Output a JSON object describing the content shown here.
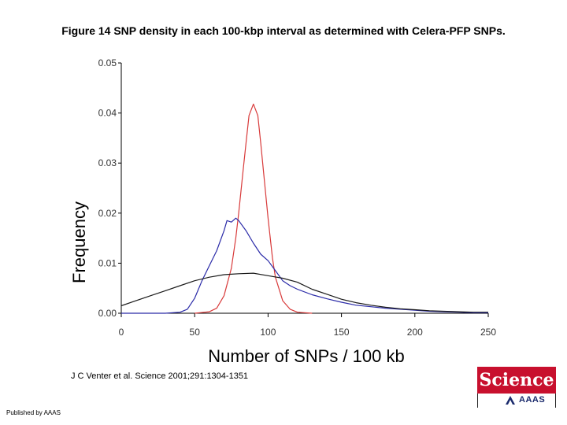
{
  "figure": {
    "title": "Figure 14 SNP density in each 100-kbp interval as determined with Celera-PFP SNPs.",
    "citation": "J C Venter et al. Science 2001;291:1304-1351",
    "publisher": "Published by AAAS",
    "logo_word": "Science",
    "logo_sub": "AAAS"
  },
  "chart_data": {
    "type": "line",
    "xlabel": "Number of SNPs / 100 kb",
    "ylabel": "Frequency",
    "xlim": [
      0,
      250
    ],
    "ylim": [
      0,
      0.05
    ],
    "xticks": [
      0,
      50,
      100,
      150,
      200,
      250
    ],
    "xtick_labels": [
      "0",
      "50",
      "100",
      "150",
      "200",
      "250"
    ],
    "yticks": [
      0,
      0.01,
      0.02,
      0.03,
      0.04,
      0.05
    ],
    "ytick_labels": [
      "0.00",
      "0.01",
      "0.02",
      "0.03",
      "0.04",
      "0.05"
    ],
    "grid": false,
    "colors": {
      "red": "#d83a3a",
      "blue": "#2b2ba8",
      "black": "#1a1a1a",
      "axes": "#000000"
    },
    "series": [
      {
        "color": "red",
        "x": [
          50,
          60,
          65,
          70,
          75,
          78,
          80,
          83,
          85,
          87,
          90,
          93,
          95,
          97,
          100,
          103,
          105,
          110,
          115,
          120,
          130
        ],
        "values": [
          0,
          0.0003,
          0.001,
          0.0035,
          0.009,
          0.015,
          0.02,
          0.0285,
          0.034,
          0.0395,
          0.0418,
          0.0395,
          0.034,
          0.028,
          0.019,
          0.011,
          0.0072,
          0.0025,
          0.0008,
          0.0002,
          0
        ]
      },
      {
        "color": "blue",
        "x": [
          0,
          30,
          40,
          45,
          50,
          55,
          60,
          65,
          70,
          72,
          75,
          78,
          80,
          85,
          90,
          95,
          100,
          105,
          110,
          115,
          120,
          130,
          140,
          150,
          160,
          170,
          180,
          190,
          200,
          210,
          220,
          230,
          240,
          250
        ],
        "values": [
          0,
          0,
          0.0002,
          0.0008,
          0.003,
          0.0065,
          0.0095,
          0.0125,
          0.0165,
          0.0185,
          0.0182,
          0.019,
          0.0185,
          0.0165,
          0.014,
          0.0118,
          0.0105,
          0.0085,
          0.0065,
          0.0055,
          0.0048,
          0.0037,
          0.0029,
          0.0022,
          0.0016,
          0.0013,
          0.001,
          0.0008,
          0.0006,
          0.0004,
          0.0003,
          0.0002,
          0.0001,
          0.0001
        ]
      },
      {
        "color": "black",
        "x": [
          0,
          10,
          20,
          30,
          40,
          50,
          60,
          70,
          75,
          80,
          90,
          100,
          110,
          120,
          130,
          140,
          150,
          160,
          170,
          180,
          190,
          200,
          210,
          220,
          230,
          240,
          250
        ],
        "values": [
          0.0015,
          0.0025,
          0.0035,
          0.0045,
          0.0055,
          0.0065,
          0.0072,
          0.0077,
          0.0078,
          0.0079,
          0.008,
          0.0075,
          0.007,
          0.0062,
          0.0048,
          0.0038,
          0.0028,
          0.0021,
          0.0016,
          0.0012,
          0.0009,
          0.0007,
          0.0005,
          0.0004,
          0.0003,
          0.0002,
          0.0002
        ]
      }
    ]
  }
}
